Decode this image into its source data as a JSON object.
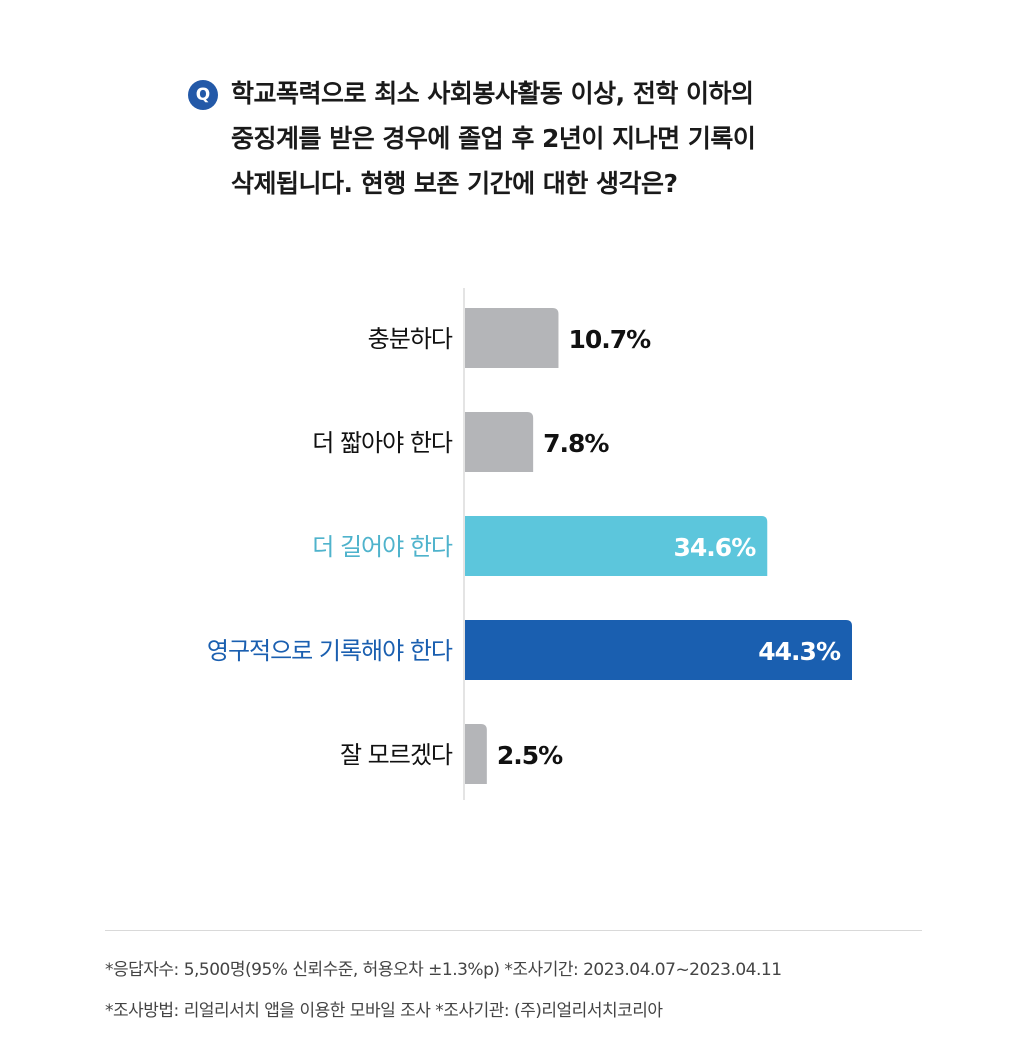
{
  "question": {
    "badge": "Q",
    "lines": [
      "학교폭력으로 최소 사회봉사활동 이상, 전학 이하의",
      "중징계를 받은 경우에 졸업 후 2년이 지나면 기록이",
      "삭제됩니다. 현행 보존 기간에 대한 생각은?"
    ]
  },
  "chart_data": {
    "type": "bar",
    "orientation": "horizontal",
    "categories": [
      "충분하다",
      "더 짧아야 한다",
      "더 길어야 한다",
      "영구적으로 기록해야 한다",
      "잘 모르겠다"
    ],
    "values": [
      10.7,
      7.8,
      34.6,
      44.3,
      2.5
    ],
    "value_labels": [
      "10.7%",
      "7.8%",
      "34.6%",
      "44.3%",
      "2.5%"
    ],
    "unit": "%",
    "xlim": [
      0,
      44.3
    ],
    "grid": false,
    "colors": {
      "default_bar": "#b4b5b8",
      "highlight_1": "#5cc6dc",
      "highlight_2": "#1a5fb0",
      "highlight_1_label": "#4fb3cc",
      "highlight_2_label": "#1a5fb0",
      "default_label": "#111111",
      "axis": "#c8c8c8"
    },
    "bar_styles": [
      "default",
      "default",
      "highlight_1",
      "highlight_2",
      "default"
    ]
  },
  "footer": {
    "line1": "*응답자수: 5,500명(95% 신뢰수준, 허용오차  ±1.3%p)  *조사기간: 2023.04.07~2023.04.11",
    "line2": "*조사방법: 리얼리서치 앱을 이용한 모바일 조사  *조사기관: (주)리얼리서치코리아"
  }
}
